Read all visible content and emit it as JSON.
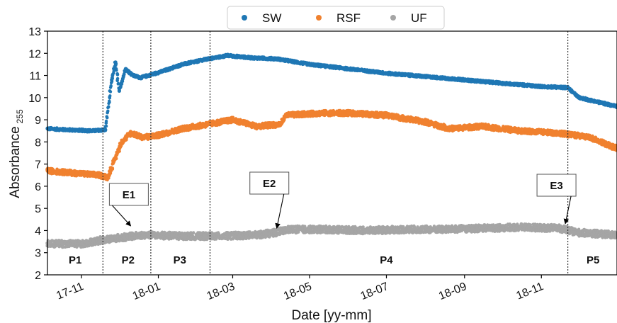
{
  "chart_data": {
    "type": "scatter",
    "xlabel": "Date [yy-mm]",
    "ylabel": "Absorbance",
    "ylabel_subscript": "255",
    "ylim": [
      2,
      13
    ],
    "xlim": [
      "2017-10-05",
      "2018-12-31"
    ],
    "yticks": [
      2,
      3,
      4,
      5,
      6,
      7,
      8,
      9,
      10,
      11,
      12,
      13
    ],
    "xticks": [
      {
        "date": "2017-11-01",
        "label": "17-11"
      },
      {
        "date": "2018-01-01",
        "label": "18-01"
      },
      {
        "date": "2018-03-01",
        "label": "18-03"
      },
      {
        "date": "2018-05-01",
        "label": "18-05"
      },
      {
        "date": "2018-07-01",
        "label": "18-07"
      },
      {
        "date": "2018-09-01",
        "label": "18-09"
      },
      {
        "date": "2018-11-01",
        "label": "18-11"
      }
    ],
    "legend_position": "top-center",
    "grid": false,
    "series": [
      {
        "name": "SW",
        "color": "#1f77b4",
        "points": [
          [
            "2017-10-05",
            8.6
          ],
          [
            "2017-10-20",
            8.55
          ],
          [
            "2017-11-10",
            8.5
          ],
          [
            "2017-11-20",
            8.55
          ],
          [
            "2017-11-25",
            10.8
          ],
          [
            "2017-11-28",
            11.6
          ],
          [
            "2017-12-01",
            10.3
          ],
          [
            "2017-12-06",
            11.3
          ],
          [
            "2017-12-12",
            11.0
          ],
          [
            "2017-12-18",
            10.9
          ],
          [
            "2018-01-05",
            11.2
          ],
          [
            "2018-01-20",
            11.5
          ],
          [
            "2018-02-10",
            11.75
          ],
          [
            "2018-02-25",
            11.9
          ],
          [
            "2018-03-15",
            11.8
          ],
          [
            "2018-04-05",
            11.75
          ],
          [
            "2018-05-01",
            11.5
          ],
          [
            "2018-06-01",
            11.3
          ],
          [
            "2018-07-01",
            11.1
          ],
          [
            "2018-08-01",
            10.95
          ],
          [
            "2018-09-01",
            10.8
          ],
          [
            "2018-10-01",
            10.65
          ],
          [
            "2018-11-01",
            10.5
          ],
          [
            "2018-11-22",
            10.45
          ],
          [
            "2018-12-01",
            10.0
          ],
          [
            "2018-12-31",
            9.6
          ]
        ]
      },
      {
        "name": "RSF",
        "color": "#f0812f",
        "points": [
          [
            "2017-10-05",
            6.7
          ],
          [
            "2017-10-25",
            6.6
          ],
          [
            "2017-11-15",
            6.5
          ],
          [
            "2017-11-22",
            6.4
          ],
          [
            "2017-11-28",
            7.3
          ],
          [
            "2017-12-03",
            8.0
          ],
          [
            "2017-12-10",
            8.4
          ],
          [
            "2017-12-20",
            8.2
          ],
          [
            "2018-01-01",
            8.3
          ],
          [
            "2018-01-20",
            8.6
          ],
          [
            "2018-02-10",
            8.8
          ],
          [
            "2018-03-01",
            9.0
          ],
          [
            "2018-03-20",
            8.7
          ],
          [
            "2018-04-08",
            8.8
          ],
          [
            "2018-04-12",
            9.2
          ],
          [
            "2018-05-10",
            9.3
          ],
          [
            "2018-06-01",
            9.3
          ],
          [
            "2018-07-01",
            9.2
          ],
          [
            "2018-08-01",
            8.9
          ],
          [
            "2018-08-20",
            8.6
          ],
          [
            "2018-09-15",
            8.7
          ],
          [
            "2018-10-15",
            8.5
          ],
          [
            "2018-11-15",
            8.4
          ],
          [
            "2018-12-10",
            8.2
          ],
          [
            "2018-12-31",
            7.7
          ]
        ]
      },
      {
        "name": "UF",
        "color": "#a5a5a5",
        "points": [
          [
            "2017-10-05",
            3.4
          ],
          [
            "2017-11-01",
            3.4
          ],
          [
            "2017-11-20",
            3.6
          ],
          [
            "2017-12-05",
            3.7
          ],
          [
            "2017-12-20",
            3.8
          ],
          [
            "2018-01-20",
            3.75
          ],
          [
            "2018-02-20",
            3.75
          ],
          [
            "2018-03-20",
            3.8
          ],
          [
            "2018-04-03",
            3.9
          ],
          [
            "2018-04-15",
            4.05
          ],
          [
            "2018-05-15",
            4.05
          ],
          [
            "2018-06-15",
            4.0
          ],
          [
            "2018-07-15",
            4.05
          ],
          [
            "2018-08-15",
            4.05
          ],
          [
            "2018-09-15",
            4.1
          ],
          [
            "2018-10-15",
            4.15
          ],
          [
            "2018-11-15",
            4.1
          ],
          [
            "2018-12-01",
            3.9
          ],
          [
            "2018-12-31",
            3.8
          ]
        ]
      }
    ],
    "period_lines": [
      "2017-11-18",
      "2017-12-26",
      "2018-02-11",
      "2018-11-22"
    ],
    "periods": [
      {
        "label": "P1",
        "date": "2017-10-27"
      },
      {
        "label": "P2",
        "date": "2017-12-08"
      },
      {
        "label": "P3",
        "date": "2018-01-18"
      },
      {
        "label": "P4",
        "date": "2018-07-01"
      },
      {
        "label": "P5",
        "date": "2018-12-12"
      }
    ],
    "events": [
      {
        "label": "E1",
        "date": "2017-12-10",
        "value": 4.15
      },
      {
        "label": "E2",
        "date": "2018-04-05",
        "value": 4.05
      },
      {
        "label": "E3",
        "date": "2018-11-20",
        "value": 4.25
      }
    ]
  }
}
